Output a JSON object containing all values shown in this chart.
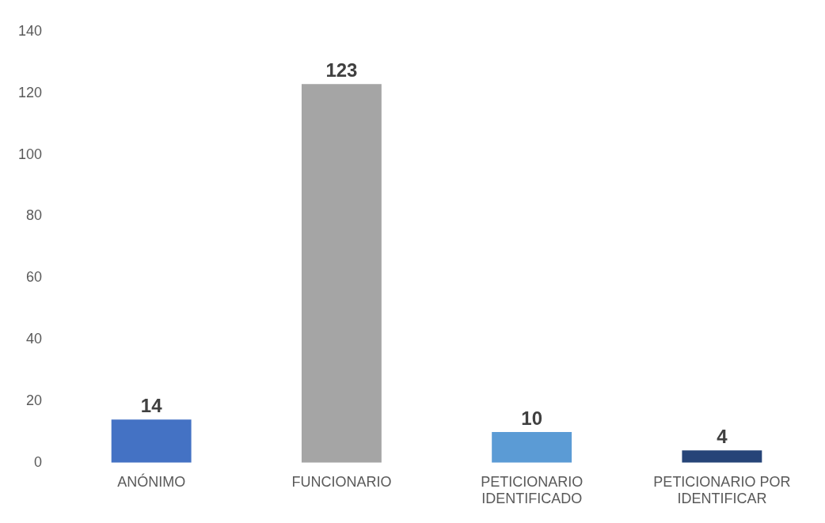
{
  "chart_data": {
    "type": "bar",
    "categories": [
      "ANÓNIMO",
      "FUNCIONARIO",
      "PETICIONARIO IDENTIFICADO",
      "PETICIONARIO POR IDENTIFICAR"
    ],
    "values": [
      14,
      123,
      10,
      4
    ],
    "colors": [
      "#4472c4",
      "#a5a5a5",
      "#5b9bd5",
      "#264478"
    ],
    "ylim": [
      0,
      140
    ],
    "yticks": [
      0,
      20,
      40,
      60,
      80,
      100,
      120,
      140
    ],
    "grid": false,
    "legend": false,
    "data_labels": true
  }
}
